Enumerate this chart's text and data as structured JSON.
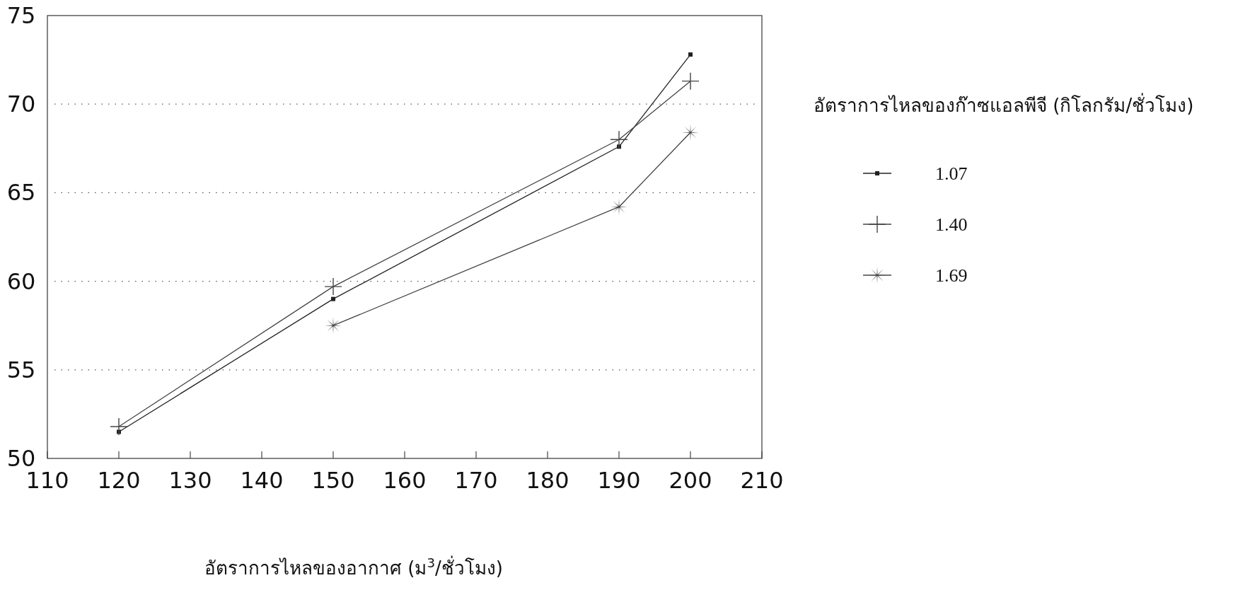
{
  "chart_data": {
    "type": "line",
    "xlabel": "อัตราการไหลของอากาศ (ม$^{3}$/ชั่วโมง)",
    "legend_title": "อัตราการไหลของก๊าซแอลพีจี (กิโลกรัม/ชั่วโมง)",
    "x": [
      120,
      150,
      190,
      200
    ],
    "series": [
      {
        "name": "1.07",
        "color": "#222222",
        "marker": "square",
        "values": [
          51.5,
          59.0,
          67.6,
          72.8
        ]
      },
      {
        "name": "1.40",
        "color": "#444444",
        "marker": "cross",
        "values": [
          51.8,
          59.7,
          68.0,
          71.3
        ]
      },
      {
        "name": "1.69",
        "color": "#444444",
        "marker": "star",
        "values": [
          null,
          57.5,
          64.2,
          68.4
        ]
      }
    ],
    "xlim": [
      110,
      210
    ],
    "xticks": [
      110,
      120,
      130,
      140,
      150,
      160,
      170,
      180,
      190,
      200,
      210
    ],
    "ylim": [
      50,
      75
    ],
    "yticks": [
      50,
      55,
      60,
      65,
      70,
      75
    ],
    "grid": "y",
    "legend": "right",
    "line_style": "solid"
  }
}
